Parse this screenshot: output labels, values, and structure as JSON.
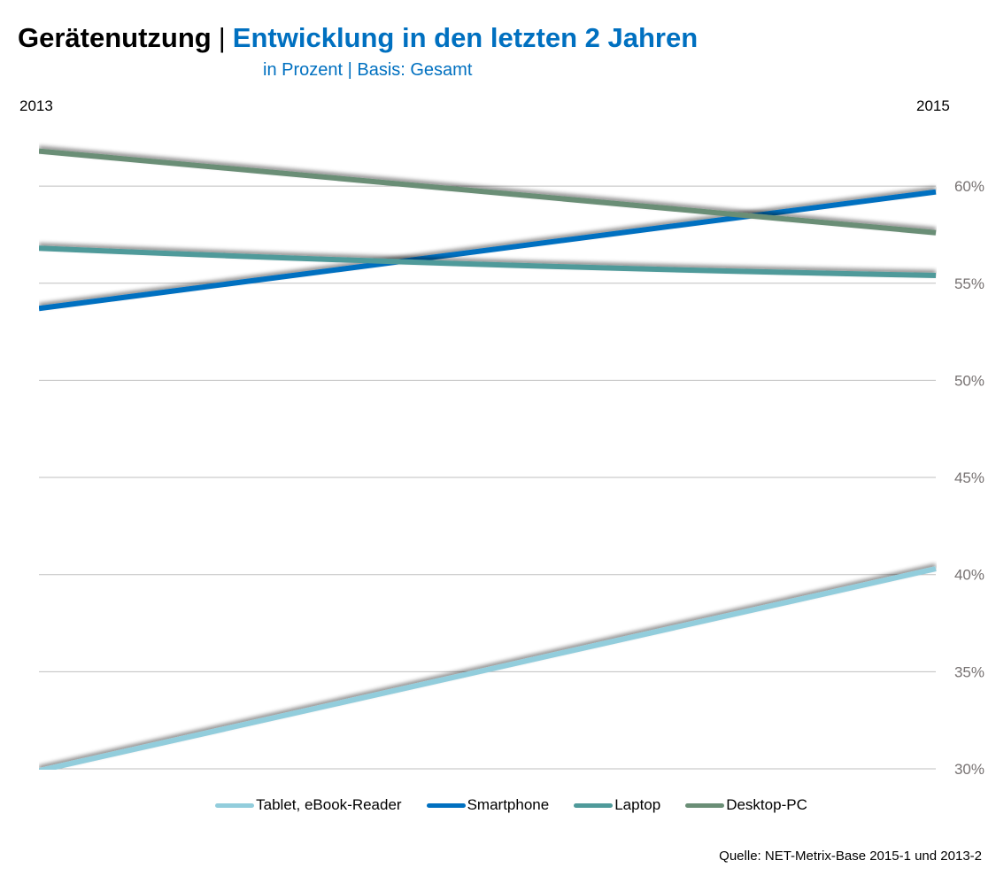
{
  "header": {
    "title_main": "Gerätenutzung",
    "title_separator": "|",
    "title_sub": "Entwicklung in den letzten 2 Jahren",
    "subtitle": "in Prozent | Basis: Gesamt"
  },
  "source": "Quelle: NET-Metrix-Base 2015-1 und 2013-2",
  "chart_data": {
    "type": "line",
    "title": "Gerätenutzung | Entwicklung in den letzten 2 Jahren",
    "subtitle": "in Prozent | Basis: Gesamt",
    "x": [
      "2013",
      "2015"
    ],
    "xlabel": "",
    "ylabel": "",
    "ylim": [
      30,
      62.5
    ],
    "y_ticks": [
      30,
      35,
      40,
      45,
      50,
      55,
      60
    ],
    "y_tick_labels": [
      "30%",
      "35%",
      "40%",
      "45%",
      "50%",
      "55%",
      "60%"
    ],
    "y_axis_position": "right",
    "grid": true,
    "legend_position": "bottom",
    "series": [
      {
        "name": "Tablet, eBook-Reader",
        "color": "#92CDDC",
        "values": [
          29.9,
          40.3
        ]
      },
      {
        "name": "Smartphone",
        "color": "#0070C0",
        "values": [
          53.7,
          59.7
        ]
      },
      {
        "name": "Laptop",
        "color": "#4F9A9A",
        "values": [
          56.8,
          55.4
        ]
      },
      {
        "name": "Desktop-PC",
        "color": "#6A8E76",
        "values": [
          61.8,
          57.6
        ]
      }
    ]
  }
}
